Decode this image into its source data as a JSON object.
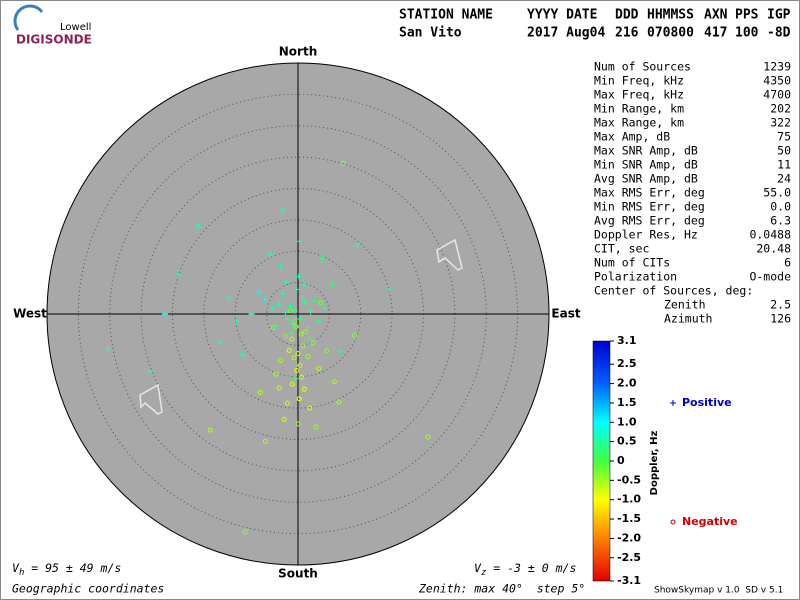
{
  "logo": {
    "top": "Lowell",
    "bottom": "DIGISONDE"
  },
  "header": {
    "labels": [
      "STATION NAME",
      "YYYY DATE",
      "DDD",
      "HHMMSS",
      "AXN",
      "PPS",
      "IGP"
    ],
    "values": [
      "San Vito",
      "2017 Aug04",
      "216",
      "070800",
      "417",
      "100",
      "-8D"
    ]
  },
  "stats": [
    {
      "label": "Num of Sources",
      "value": "1239"
    },
    {
      "label": "Min Freq, kHz",
      "value": "4350"
    },
    {
      "label": "Max Freq, kHz",
      "value": "4700"
    },
    {
      "label": "Min Range, km",
      "value": "202"
    },
    {
      "label": "Max Range, km",
      "value": "322"
    },
    {
      "label": "Max Amp, dB",
      "value": "75"
    },
    {
      "label": "Max SNR Amp, dB",
      "value": "50"
    },
    {
      "label": "Min SNR Amp, dB",
      "value": "11"
    },
    {
      "label": "Avg SNR Amp, dB",
      "value": "24"
    },
    {
      "label": "Max RMS Err, deg",
      "value": "55.0"
    },
    {
      "label": "Min RMS Err, deg",
      "value": "0.0"
    },
    {
      "label": "Avg RMS Err, deg",
      "value": "6.3"
    },
    {
      "label": "Doppler Res, Hz",
      "value": "0.0488"
    },
    {
      "label": "CIT, sec",
      "value": "20.48"
    },
    {
      "label": "Num of CITs",
      "value": "6"
    },
    {
      "label": "Polarization",
      "value": "O-mode"
    }
  ],
  "center": {
    "title": "Center of Sources, deg:",
    "rows": [
      {
        "label": "Zenith",
        "value": "2.5"
      },
      {
        "label": "Azimuth",
        "value": "126"
      }
    ]
  },
  "footer": {
    "vh": {
      "symbol": "V",
      "subscript": "h",
      "text": " = 95 ± 49 m/s"
    },
    "vz": {
      "symbol": "V",
      "subscript": "z",
      "text": " = -3 ± 0 m/s"
    },
    "coordinates": "Geographic coordinates",
    "zenith": "Zenith: max 40°  step 5°",
    "version": "ShowSkymap v 1.0  SD v 5.1"
  },
  "chart_data": {
    "type": "skymap",
    "directions": {
      "north": "North",
      "south": "South",
      "east": "East",
      "west": "West"
    },
    "rlim": [
      0,
      40
    ],
    "rticks": [
      5,
      10,
      15,
      20,
      25,
      30,
      35
    ],
    "grid": true,
    "colorbar": {
      "label": "Doppler, Hz",
      "lim": [
        -3.1,
        3.1
      ],
      "ticks": [
        3.1,
        2.5,
        {
          "value": 2.0,
          "label": "2.0"
        },
        1.5,
        {
          "value": 1.0,
          "label": "1.0"
        },
        0.5,
        0,
        -0.5,
        {
          "value": -1.0,
          "label": "-1.0"
        },
        -1.5,
        {
          "value": -2.0,
          "label": "-2.0"
        },
        -2.5,
        -3.1
      ]
    },
    "colormap": [
      [
        -3.1,
        "#e00000"
      ],
      [
        -2.0,
        "#ff8000"
      ],
      [
        -1.0,
        "#ffff00"
      ],
      [
        0,
        "#40ff40"
      ],
      [
        1.0,
        "#00ffff"
      ],
      [
        2.0,
        "#0060ff"
      ],
      [
        3.1,
        "#0000d0"
      ]
    ],
    "series": [
      {
        "name": "Positive",
        "color": "#0000c0",
        "marker": "plus",
        "x": [
          -0.5,
          -1.2,
          0.3,
          -2.0,
          1.1,
          -0.8,
          0.6,
          -1.6,
          -3.0,
          2.0,
          -2.5,
          1.5,
          -0.2,
          -4.1,
          3.2,
          -1.0,
          0.9,
          -5.3,
          2.6,
          -3.6,
          0.1,
          -1.9,
          4.3,
          -6.2,
          1.8,
          -7.4,
          5.5,
          -2.8,
          -9.8,
          -2.4,
          -15.9,
          -21.2,
          -19.0,
          -23.6,
          -30.3,
          14.6,
          9.5,
          -12.5,
          -11.0,
          6.8,
          -4.5,
          3.9,
          -8.9,
          -0.4,
          0.2
        ],
        "y": [
          0.5,
          1.2,
          -0.8,
          0.2,
          1.8,
          -1.6,
          2.6,
          -0.9,
          1.5,
          0.4,
          3.2,
          -2.2,
          3.9,
          0.8,
          -1.0,
          -3.0,
          4.7,
          2.3,
          2.1,
          -2.0,
          6.0,
          5.1,
          1.0,
          3.5,
          -4.0,
          0.0,
          4.8,
          7.5,
          -1.2,
          16.6,
          13.9,
          0.0,
          6.2,
          -9.2,
          -5.7,
          4.0,
          11.0,
          -4.5,
          2.6,
          -6.0,
          9.5,
          8.8,
          -6.5,
          -10.3,
          11.6
        ],
        "doppler": [
          0.4,
          0.5,
          0.3,
          0.6,
          0.4,
          0.5,
          0.7,
          0.3,
          0.5,
          0.4,
          0.6,
          0.3,
          0.5,
          0.7,
          0.4,
          0.2,
          0.6,
          0.8,
          0.4,
          0.5,
          0.6,
          0.5,
          0.3,
          0.9,
          0.2,
          0.8,
          0.4,
          0.6,
          0.7,
          0.5,
          0.6,
          0.9,
          0.7,
          0.8,
          0.6,
          0.4,
          0.5,
          0.6,
          0.7,
          0.3,
          0.5,
          0.4,
          0.6,
          0.2,
          0.5
        ]
      },
      {
        "name": "Negative",
        "color": "#d00000",
        "marker": "circle",
        "x": [
          -0.3,
          0.5,
          -1.0,
          0.8,
          0.0,
          -0.6,
          1.2,
          -1.4,
          0.3,
          -0.2,
          1.6,
          -2.0,
          0.6,
          -0.9,
          2.4,
          -2.8,
          1.0,
          3.3,
          -3.5,
          0.2,
          -0.5,
          4.6,
          -4.0,
          1.9,
          -1.7,
          5.8,
          -6.0,
          7.2,
          -8.4,
          -14.0,
          20.7,
          -2.2,
          2.9,
          -5.2,
          0.0,
          -1.2,
          6.5,
          3.6,
          -3.0,
          9.0
        ],
        "y": [
          -2.0,
          -3.2,
          -4.0,
          -5.1,
          -6.3,
          -7.0,
          -2.8,
          -5.8,
          -8.2,
          -9.0,
          -6.8,
          -3.5,
          -10.1,
          -11.2,
          -4.6,
          -7.4,
          -12.0,
          -8.7,
          -9.6,
          -13.5,
          -1.2,
          -5.9,
          -2.2,
          -15.0,
          -14.2,
          -10.8,
          -12.5,
          24.0,
          -34.7,
          -18.5,
          -19.6,
          -16.8,
          -18.0,
          -20.3,
          -17.5,
          0.5,
          -14.0,
          1.8,
          -11.8,
          -3.4
        ],
        "doppler": [
          -0.3,
          -0.5,
          -0.6,
          -0.4,
          -0.7,
          -0.5,
          -0.3,
          -0.8,
          -0.6,
          -0.9,
          -0.4,
          -0.3,
          -0.7,
          -0.8,
          -0.4,
          -0.5,
          -0.9,
          -0.6,
          -0.5,
          -1.0,
          -0.2,
          -0.4,
          -0.3,
          -0.8,
          -0.7,
          -0.5,
          -0.6,
          -0.3,
          -0.4,
          -0.6,
          -0.5,
          -0.7,
          -0.4,
          -0.6,
          -0.5,
          -0.2,
          -0.5,
          -0.3,
          -0.6,
          -0.4
        ]
      }
    ]
  }
}
